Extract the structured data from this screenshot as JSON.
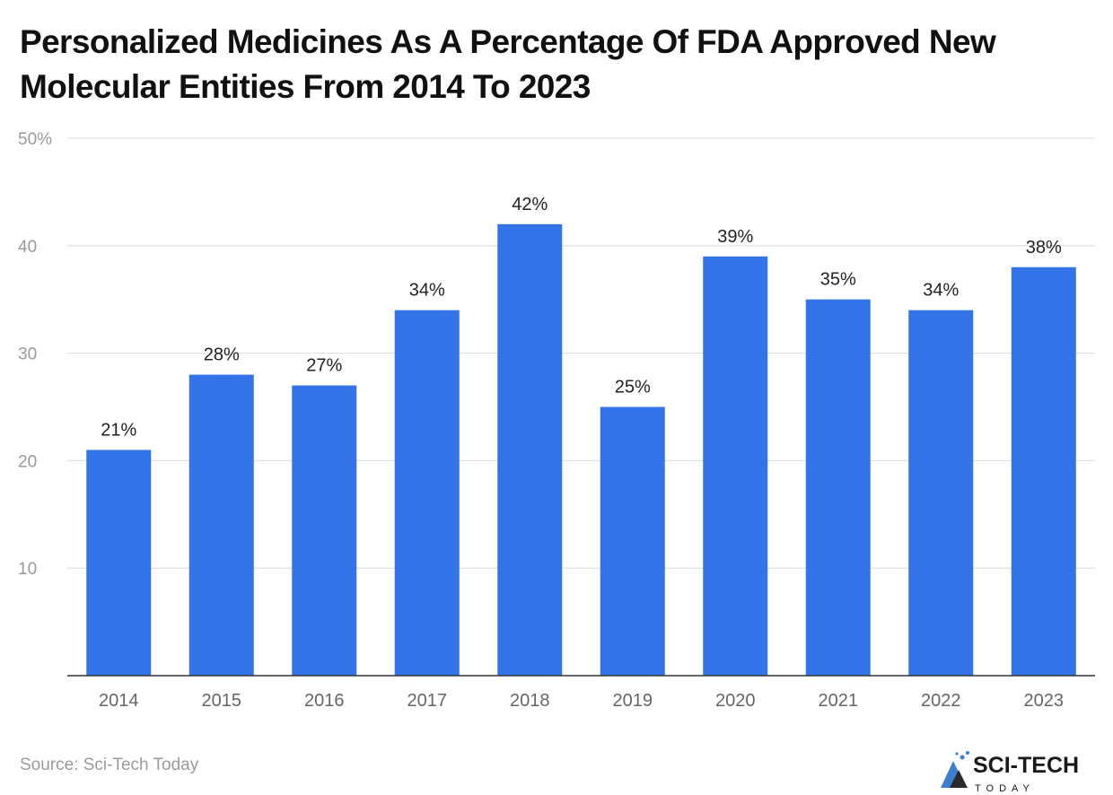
{
  "title": "Personalized Medicines As A Percentage Of FDA Approved New Molecular Entities From 2014 To 2023",
  "source": "Source: Sci-Tech Today",
  "logo": {
    "text": "SCI-TECH",
    "subtext": "TODAY"
  },
  "colors": {
    "bar": "#3374E8",
    "grid": "#e3e3e3",
    "axis": "#333333",
    "tick_text": "#9a9a9a"
  },
  "chart_data": {
    "type": "bar",
    "title": "Personalized Medicines As A Percentage Of FDA Approved New Molecular Entities From 2014 To 2023",
    "categories": [
      "2014",
      "2015",
      "2016",
      "2017",
      "2018",
      "2019",
      "2020",
      "2021",
      "2022",
      "2023"
    ],
    "values": [
      21,
      28,
      27,
      34,
      42,
      25,
      39,
      35,
      34,
      38
    ],
    "data_labels": [
      "21%",
      "28%",
      "27%",
      "34%",
      "42%",
      "25%",
      "39%",
      "35%",
      "34%",
      "38%"
    ],
    "ylim": [
      0,
      50
    ],
    "yticks": [
      10,
      20,
      30,
      40,
      50
    ],
    "ytick_labels": [
      "10",
      "20",
      "30",
      "40",
      "50%"
    ],
    "grid": true,
    "xlabel": "",
    "ylabel": ""
  }
}
